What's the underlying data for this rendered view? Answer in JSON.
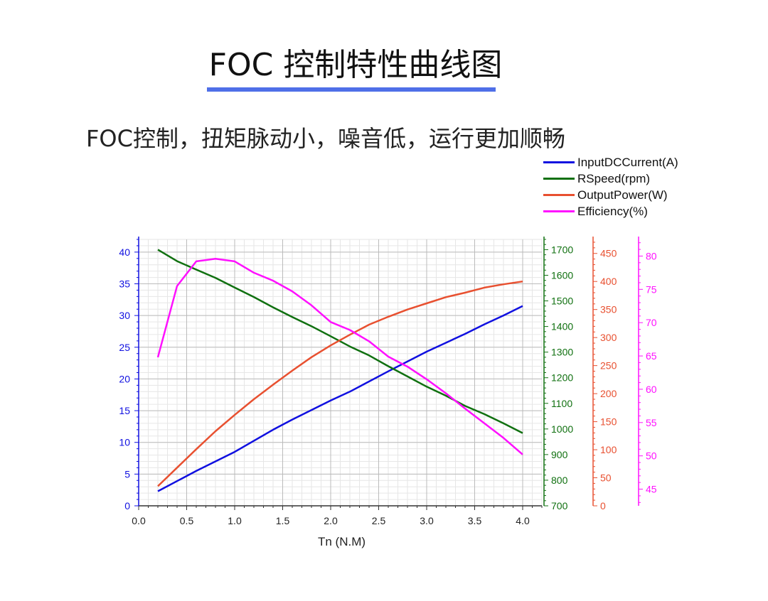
{
  "header": {
    "title": "FOC 控制特性曲线图",
    "subtitle": "FOC控制，扭矩脉动小，噪音低，运行更加顺畅"
  },
  "colors": {
    "current": "#1010e0",
    "speed": "#107010",
    "power": "#e85030",
    "efficiency": "#ff10ff",
    "accent_bar": "#4f6fe8",
    "grid": "#cccccc"
  },
  "chart_data": {
    "type": "line",
    "xlabel": "Tn (N.M)",
    "xlim": [
      0,
      4.2
    ],
    "x_ticks": [
      "0.0",
      "0.5",
      "1.0",
      "1.5",
      "2.0",
      "2.5",
      "3.0",
      "3.5",
      "4.0"
    ],
    "grid": true,
    "legend_position": "top-right",
    "axes": {
      "current": {
        "ylim": [
          0,
          42
        ],
        "ticks": [
          "0",
          "5",
          "10",
          "15",
          "20",
          "25",
          "30",
          "35",
          "40"
        ]
      },
      "speed": {
        "ylim": [
          700,
          1740
        ],
        "ticks": [
          "700",
          "800",
          "900",
          "1000",
          "1100",
          "1200",
          "1300",
          "1400",
          "1500",
          "1600",
          "1700"
        ]
      },
      "power": {
        "ylim": [
          0,
          475
        ],
        "ticks": [
          "0",
          "50",
          "100",
          "150",
          "200",
          "250",
          "300",
          "350",
          "400",
          "450"
        ]
      },
      "efficiency": {
        "ylim": [
          42.5,
          82.5
        ],
        "ticks": [
          "45",
          "50",
          "55",
          "60",
          "65",
          "70",
          "75",
          "80"
        ]
      }
    },
    "series": [
      {
        "name": "InputDCCurrent(A)",
        "axis": "current",
        "color": "#1010e0",
        "x": [
          0.2,
          0.6,
          1.0,
          1.4,
          1.6,
          2.0,
          2.2,
          2.6,
          3.0,
          3.4,
          3.6,
          3.8,
          4.0
        ],
        "y": [
          2.3,
          5.5,
          8.5,
          12.0,
          13.6,
          16.6,
          18.0,
          21.2,
          24.3,
          27.1,
          28.6,
          30.0,
          31.5
        ]
      },
      {
        "name": "RSpeed(rpm)",
        "axis": "speed",
        "color": "#107010",
        "x": [
          0.2,
          0.4,
          0.6,
          0.8,
          1.0,
          1.2,
          1.4,
          1.6,
          1.8,
          2.0,
          2.2,
          2.4,
          2.6,
          2.8,
          3.0,
          3.2,
          3.4,
          3.6,
          3.8,
          4.0
        ],
        "y": [
          1700,
          1655,
          1622,
          1590,
          1552,
          1515,
          1475,
          1437,
          1401,
          1362,
          1322,
          1287,
          1245,
          1205,
          1165,
          1130,
          1090,
          1058,
          1022,
          984
        ]
      },
      {
        "name": "OutputPower(W)",
        "axis": "power",
        "color": "#e85030",
        "x": [
          0.2,
          0.4,
          0.6,
          0.8,
          1.0,
          1.2,
          1.4,
          1.6,
          1.8,
          2.0,
          2.2,
          2.4,
          2.6,
          2.8,
          3.0,
          3.2,
          3.4,
          3.6,
          3.8,
          4.0
        ],
        "y": [
          35,
          68,
          101,
          133,
          162,
          190,
          216,
          241,
          265,
          286,
          305,
          323,
          337,
          350,
          361,
          372,
          380,
          389,
          395,
          400
        ]
      },
      {
        "name": "Efficiency(%)",
        "axis": "efficiency",
        "color": "#ff10ff",
        "x": [
          0.2,
          0.4,
          0.6,
          0.8,
          1.0,
          1.2,
          1.4,
          1.6,
          1.8,
          2.0,
          2.2,
          2.4,
          2.6,
          2.8,
          3.0,
          3.2,
          3.4,
          3.6,
          3.8,
          4.0
        ],
        "y": [
          64.8,
          75.5,
          79.2,
          79.6,
          79.2,
          77.5,
          76.3,
          74.7,
          72.6,
          70.1,
          68.9,
          67.2,
          64.9,
          63.4,
          61.5,
          59.4,
          57.1,
          54.9,
          52.7,
          50.2
        ]
      }
    ]
  }
}
